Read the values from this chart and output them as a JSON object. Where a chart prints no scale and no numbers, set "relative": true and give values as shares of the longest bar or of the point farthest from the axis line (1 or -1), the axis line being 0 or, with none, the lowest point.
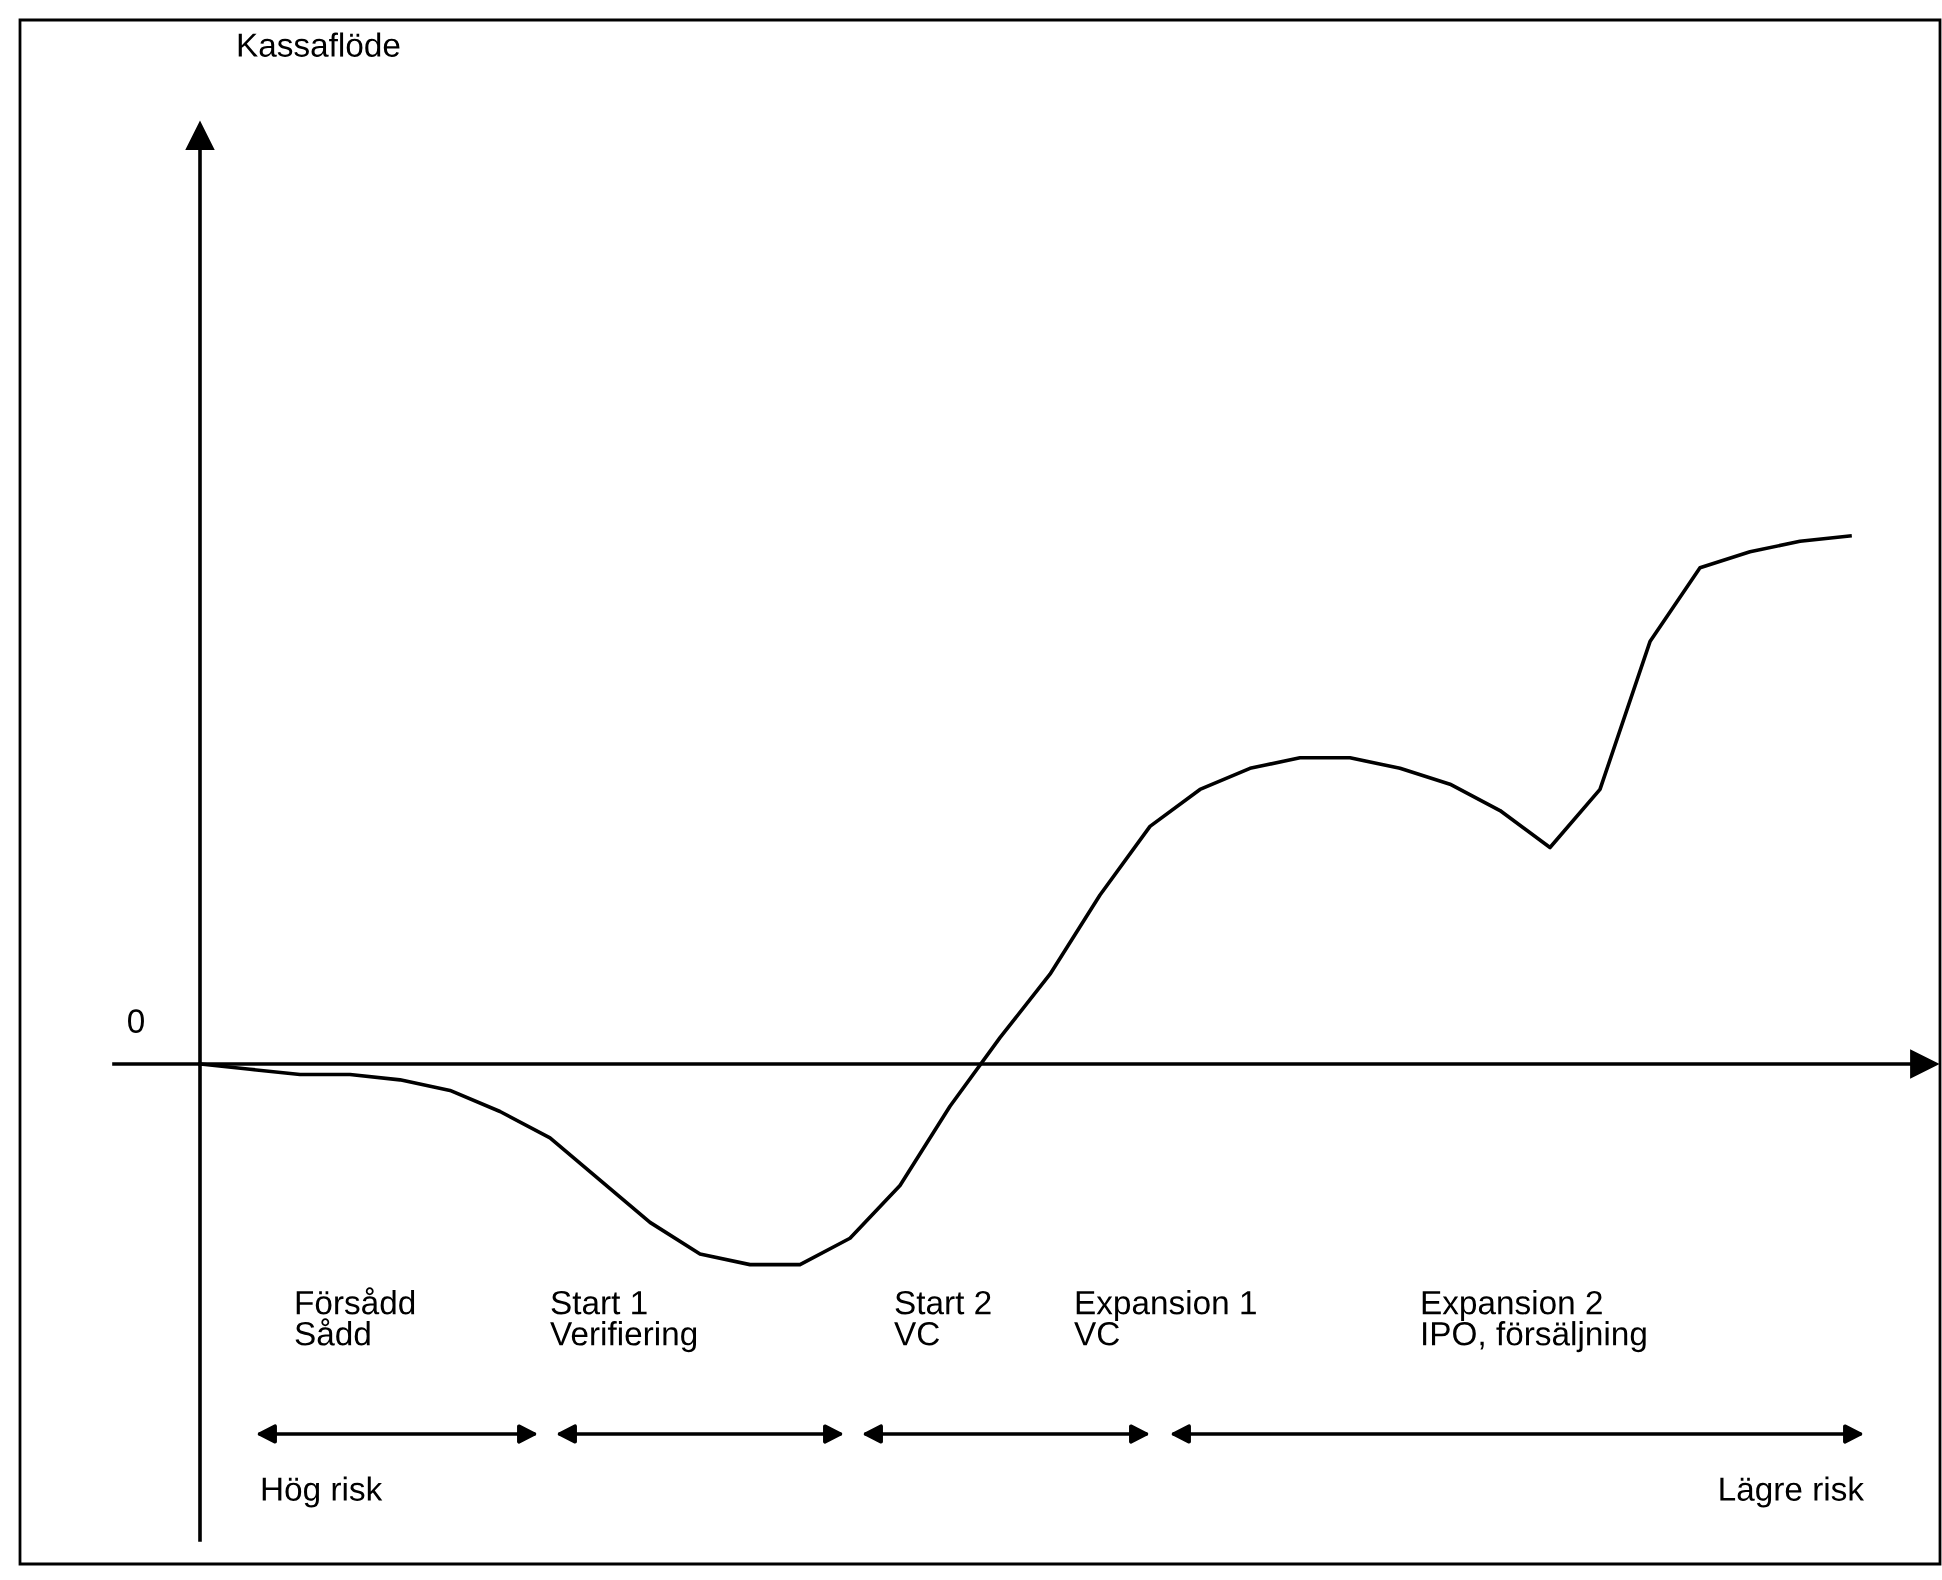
{
  "chart_data": {
    "type": "line",
    "relative": true,
    "color": "#000000",
    "marker": "none",
    "line_style": "solid",
    "legend": false,
    "categories": [
      null,
      null,
      null,
      null,
      null,
      null,
      null,
      null,
      null,
      null,
      null,
      null,
      null,
      null,
      null,
      null,
      null,
      null,
      null,
      null,
      null,
      null,
      null,
      null,
      null,
      null,
      null,
      null,
      null,
      null,
      null,
      null,
      null,
      null
    ],
    "values": [
      0,
      -0.01,
      -0.02,
      -0.02,
      -0.03,
      -0.05,
      -0.09,
      -0.14,
      -0.22,
      -0.3,
      -0.36,
      -0.38,
      -0.38,
      -0.33,
      -0.23,
      -0.08,
      0.05,
      0.17,
      0.32,
      0.45,
      0.52,
      0.56,
      0.58,
      0.58,
      0.56,
      0.53,
      0.48,
      0.41,
      0.52,
      0.8,
      0.94,
      0.97,
      0.99,
      1
    ],
    "annotations": [
      "0",
      "Försådd\nSådd",
      "Start 1\nVerifiering",
      "Start 2\nVC",
      "Expansion 1\nVC",
      "Expansion 2\nIPO, försäljning",
      "Hög risk",
      "Lägre risk",
      "Kassaflöde"
    ]
  }
}
